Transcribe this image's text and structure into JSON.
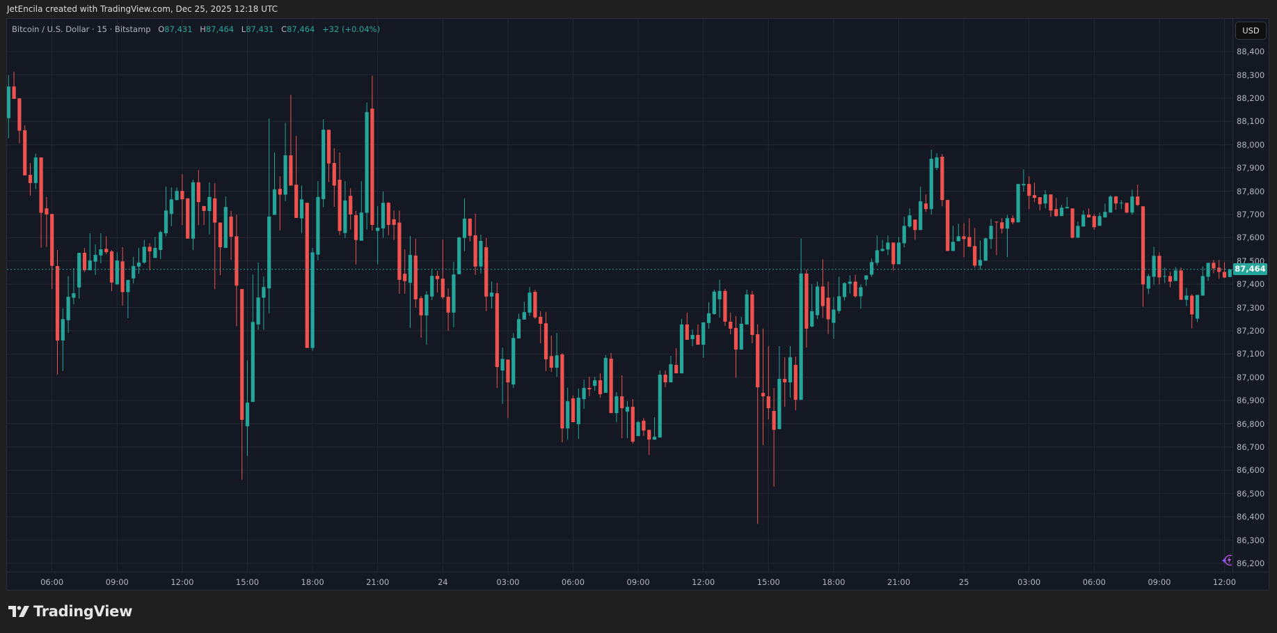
{
  "caption": "JetEncila created with TradingView.com, Dec 25, 2025 12:18 UTC",
  "legend": {
    "symbol": "Bitcoin / U.S. Dollar · 15 · Bitstamp",
    "o_label": "O",
    "o": "87,431",
    "h_label": "H",
    "h": "87,464",
    "l_label": "L",
    "l": "87,431",
    "c_label": "C",
    "c": "87,464",
    "change": "+32 (+0.04%)"
  },
  "currency_button": "USD",
  "last_price_label": "87,464",
  "logo_text": "TradingView",
  "colors": {
    "up": "#26a69a",
    "down": "#ef5350",
    "grid": "#232733",
    "last_line": "#26a69a"
  },
  "chart_data": {
    "type": "candlestick",
    "title": "Bitcoin / U.S. Dollar · 15 · Bitstamp",
    "interval_minutes": 15,
    "ylim": [
      86164,
      88541
    ],
    "grid": true,
    "last_price": 87464,
    "y_ticks": [
      "88,400",
      "88,300",
      "88,200",
      "88,100",
      "88,000",
      "87,900",
      "87,800",
      "87,700",
      "87,600",
      "87,500",
      "87,400",
      "87,300",
      "87,200",
      "87,100",
      "87,000",
      "86,900",
      "86,800",
      "86,700",
      "86,600",
      "86,500",
      "86,400",
      "86,300",
      "86,200"
    ],
    "y_tick_values": [
      88400,
      88300,
      88200,
      88100,
      88000,
      87900,
      87800,
      87700,
      87600,
      87500,
      87400,
      87300,
      87200,
      87100,
      87000,
      86900,
      86800,
      86700,
      86600,
      86500,
      86400,
      86300,
      86200
    ],
    "x_ticks": [
      {
        "label": "06:00",
        "index": 8
      },
      {
        "label": "09:00",
        "index": 20
      },
      {
        "label": "12:00",
        "index": 32
      },
      {
        "label": "15:00",
        "index": 44
      },
      {
        "label": "18:00",
        "index": 56
      },
      {
        "label": "21:00",
        "index": 68
      },
      {
        "label": "24",
        "index": 80
      },
      {
        "label": "03:00",
        "index": 92
      },
      {
        "label": "06:00",
        "index": 104
      },
      {
        "label": "09:00",
        "index": 116
      },
      {
        "label": "12:00",
        "index": 128
      },
      {
        "label": "15:00",
        "index": 140
      },
      {
        "label": "18:00",
        "index": 152
      },
      {
        "label": "21:00",
        "index": 164
      },
      {
        "label": "25",
        "index": 176
      },
      {
        "label": "03:00",
        "index": 188
      },
      {
        "label": "06:00",
        "index": 200
      },
      {
        "label": "09:00",
        "index": 212
      },
      {
        "label": "12:00",
        "index": 224
      }
    ],
    "ohlc": [
      [
        88114,
        88298,
        88027,
        88250
      ],
      [
        88250,
        88313,
        88197,
        88197
      ],
      [
        88199,
        88199,
        88006,
        88060
      ],
      [
        88062,
        88083,
        87868,
        87868
      ],
      [
        87870,
        87921,
        87781,
        87835
      ],
      [
        87835,
        87962,
        87809,
        87945
      ],
      [
        87945,
        87945,
        87557,
        87707
      ],
      [
        87726,
        87775,
        87560,
        87700
      ],
      [
        87702,
        87702,
        87379,
        87479
      ],
      [
        87478,
        87547,
        87012,
        87158
      ],
      [
        87158,
        87296,
        87027,
        87250
      ],
      [
        87245,
        87435,
        87191,
        87346
      ],
      [
        87342,
        87469,
        87314,
        87361
      ],
      [
        87386,
        87535,
        87338,
        87535
      ],
      [
        87535,
        87556,
        87453,
        87460
      ],
      [
        87460,
        87619,
        87460,
        87502
      ],
      [
        87497,
        87571,
        87440,
        87526
      ],
      [
        87524,
        87619,
        87490,
        87550
      ],
      [
        87552,
        87606,
        87529,
        87538
      ],
      [
        87541,
        87547,
        87370,
        87407
      ],
      [
        87399,
        87537,
        87399,
        87502
      ],
      [
        87498,
        87559,
        87308,
        87366
      ],
      [
        87366,
        87418,
        87254,
        87418
      ],
      [
        87425,
        87517,
        87403,
        87478
      ],
      [
        87476,
        87556,
        87445,
        87493
      ],
      [
        87493,
        87591,
        87488,
        87561
      ],
      [
        87561,
        87576,
        87460,
        87541
      ],
      [
        87513,
        87604,
        87513,
        87556
      ],
      [
        87547,
        87630,
        87508,
        87624
      ],
      [
        87619,
        87819,
        87605,
        87717
      ],
      [
        87702,
        87816,
        87649,
        87765
      ],
      [
        87762,
        87816,
        87760,
        87801
      ],
      [
        87801,
        87873,
        87654,
        87765
      ],
      [
        87769,
        87771,
        87596,
        87596
      ],
      [
        87596,
        87849,
        87547,
        87838
      ],
      [
        87838,
        87891,
        87654,
        87753
      ],
      [
        87736,
        87736,
        87654,
        87715
      ],
      [
        87715,
        87838,
        87614,
        87775
      ],
      [
        87769,
        87834,
        87379,
        87665
      ],
      [
        87665,
        87665,
        87439,
        87559
      ],
      [
        87556,
        87777,
        87556,
        87732
      ],
      [
        87691,
        87715,
        87505,
        87604
      ],
      [
        87606,
        87699,
        87220,
        87394
      ],
      [
        87379,
        87379,
        86560,
        86817
      ],
      [
        86789,
        87073,
        86662,
        86891
      ],
      [
        86894,
        87442,
        86894,
        87238
      ],
      [
        87227,
        87493,
        87204,
        87343
      ],
      [
        87342,
        87433,
        87204,
        87388
      ],
      [
        87382,
        88112,
        87275,
        87691
      ],
      [
        87698,
        87966,
        87698,
        87808
      ],
      [
        87810,
        87864,
        87631,
        87785
      ],
      [
        87785,
        88094,
        87757,
        87954
      ],
      [
        87954,
        88214,
        87824,
        87824
      ],
      [
        87828,
        88038,
        87685,
        87685
      ],
      [
        87683,
        87825,
        87620,
        87765
      ],
      [
        87750,
        87750,
        87126,
        87126
      ],
      [
        87126,
        87556,
        87114,
        87537
      ],
      [
        87527,
        87843,
        87503,
        87775
      ],
      [
        87766,
        88109,
        87731,
        88064
      ],
      [
        88064,
        88064,
        87839,
        87919
      ],
      [
        87921,
        87984,
        87733,
        87824
      ],
      [
        87849,
        87966,
        87611,
        87629
      ],
      [
        87620,
        87843,
        87599,
        87760
      ],
      [
        87780,
        87813,
        87635,
        87700
      ],
      [
        87697,
        87715,
        87485,
        87590
      ],
      [
        87587,
        87843,
        87587,
        87708
      ],
      [
        87707,
        88181,
        87635,
        88140
      ],
      [
        88155,
        88296,
        87631,
        87655
      ],
      [
        87629,
        87736,
        87485,
        87643
      ],
      [
        87640,
        87799,
        87599,
        87750
      ],
      [
        87750,
        87754,
        87611,
        87655
      ],
      [
        87679,
        87717,
        87590,
        87655
      ],
      [
        87665,
        87717,
        87359,
        87419
      ],
      [
        87445,
        87550,
        87359,
        87413
      ],
      [
        87406,
        87607,
        87212,
        87526
      ],
      [
        87523,
        87595,
        87299,
        87335
      ],
      [
        87340,
        87349,
        87170,
        87266
      ],
      [
        87266,
        87370,
        87140,
        87355
      ],
      [
        87347,
        87463,
        87332,
        87436
      ],
      [
        87436,
        87457,
        87365,
        87422
      ],
      [
        87424,
        87592,
        87335,
        87344
      ],
      [
        87346,
        87382,
        87200,
        87278
      ],
      [
        87278,
        87496,
        87215,
        87442
      ],
      [
        87443,
        87604,
        87443,
        87601
      ],
      [
        87599,
        87769,
        87542,
        87682
      ],
      [
        87682,
        87682,
        87584,
        87608
      ],
      [
        87610,
        87703,
        87440,
        87476
      ],
      [
        87476,
        87613,
        87446,
        87586
      ],
      [
        87559,
        87598,
        87284,
        87347
      ],
      [
        87347,
        87412,
        87296,
        87364
      ],
      [
        87361,
        87406,
        86954,
        87044
      ],
      [
        87029,
        87127,
        86885,
        87079
      ],
      [
        87076,
        87076,
        86825,
        86978
      ],
      [
        86969,
        87190,
        86954,
        87169
      ],
      [
        87167,
        87274,
        87167,
        87250
      ],
      [
        87248,
        87325,
        87248,
        87280
      ],
      [
        87278,
        87388,
        87263,
        87364
      ],
      [
        87367,
        87376,
        87251,
        87257
      ],
      [
        87260,
        87284,
        87146,
        87230
      ],
      [
        87232,
        87281,
        87026,
        87077
      ],
      [
        87091,
        87179,
        87023,
        87041
      ],
      [
        87041,
        87191,
        87002,
        87094
      ],
      [
        87098,
        87104,
        86720,
        86780
      ],
      [
        86780,
        86956,
        86732,
        86897
      ],
      [
        86909,
        86921,
        86807,
        86807
      ],
      [
        86798,
        86951,
        86735,
        86912
      ],
      [
        86906,
        86990,
        86864,
        86954
      ],
      [
        86954,
        87002,
        86918,
        86948
      ],
      [
        86963,
        87002,
        86942,
        86987
      ],
      [
        86987,
        87017,
        86912,
        86927
      ],
      [
        86933,
        87095,
        86933,
        87083
      ],
      [
        87080,
        87104,
        86846,
        86846
      ],
      [
        86846,
        86936,
        86807,
        86918
      ],
      [
        86918,
        87008,
        86738,
        86867
      ],
      [
        86852,
        86897,
        86738,
        86873
      ],
      [
        86873,
        86906,
        86714,
        86723
      ],
      [
        86747,
        86813,
        86747,
        86807
      ],
      [
        86813,
        86825,
        86747,
        86771
      ],
      [
        86774,
        86774,
        86666,
        86732
      ],
      [
        86732,
        86828,
        86732,
        86744
      ],
      [
        86741,
        87029,
        86741,
        87011
      ],
      [
        87011,
        87029,
        86957,
        86978
      ],
      [
        86978,
        87092,
        86978,
        87056
      ],
      [
        87053,
        87125,
        87017,
        87017
      ],
      [
        87017,
        87251,
        87017,
        87227
      ],
      [
        87227,
        87278,
        87161,
        87161
      ],
      [
        87164,
        87206,
        87134,
        87182
      ],
      [
        87182,
        87227,
        87140,
        87140
      ],
      [
        87140,
        87236,
        87083,
        87236
      ],
      [
        87233,
        87323,
        87209,
        87275
      ],
      [
        87272,
        87377,
        87269,
        87368
      ],
      [
        87335,
        87419,
        87257,
        87371
      ],
      [
        87371,
        87380,
        87221,
        87239
      ],
      [
        87239,
        87278,
        87185,
        87209
      ],
      [
        87212,
        87263,
        86999,
        87119
      ],
      [
        87119,
        87260,
        87119,
        87230
      ],
      [
        87227,
        87377,
        87227,
        87356
      ],
      [
        87356,
        87371,
        87146,
        87182
      ],
      [
        87185,
        87227,
        86370,
        86957
      ],
      [
        86933,
        87209,
        86708,
        86918
      ],
      [
        86918,
        87134,
        86819,
        86867
      ],
      [
        86855,
        86954,
        86530,
        86774
      ],
      [
        86777,
        87134,
        86777,
        86993
      ],
      [
        86993,
        87086,
        86873,
        86978
      ],
      [
        86978,
        87134,
        86912,
        87086
      ],
      [
        87053,
        87089,
        86858,
        86903
      ],
      [
        86903,
        87597,
        86903,
        87446
      ],
      [
        87446,
        87463,
        87128,
        87209
      ],
      [
        87218,
        87400,
        87215,
        87284
      ],
      [
        87267,
        87411,
        87250,
        87390
      ],
      [
        87390,
        87507,
        87255,
        87306
      ],
      [
        87342,
        87411,
        87186,
        87249
      ],
      [
        87234,
        87345,
        87165,
        87291
      ],
      [
        87285,
        87432,
        87273,
        87348
      ],
      [
        87345,
        87408,
        87330,
        87405
      ],
      [
        87402,
        87438,
        87360,
        87411
      ],
      [
        87411,
        87441,
        87342,
        87348
      ],
      [
        87348,
        87399,
        87294,
        87387
      ],
      [
        87420,
        87438,
        87393,
        87438
      ],
      [
        87441,
        87510,
        87432,
        87495
      ],
      [
        87492,
        87609,
        87480,
        87546
      ],
      [
        87543,
        87591,
        87540,
        87552
      ],
      [
        87549,
        87609,
        87525,
        87579
      ],
      [
        87579,
        87579,
        87459,
        87486
      ],
      [
        87486,
        87603,
        87486,
        87579
      ],
      [
        87576,
        87690,
        87558,
        87651
      ],
      [
        87648,
        87726,
        87642,
        87696
      ],
      [
        87678,
        87678,
        87591,
        87633
      ],
      [
        87633,
        87819,
        87633,
        87756
      ],
      [
        87747,
        87786,
        87711,
        87723
      ],
      [
        87723,
        87978,
        87699,
        87939
      ],
      [
        87900,
        87963,
        87891,
        87945
      ],
      [
        87948,
        87960,
        87735,
        87762
      ],
      [
        87762,
        87762,
        87543,
        87543
      ],
      [
        87543,
        87651,
        87543,
        87582
      ],
      [
        87585,
        87660,
        87585,
        87606
      ],
      [
        87606,
        87663,
        87516,
        87594
      ],
      [
        87603,
        87684,
        87561,
        87561
      ],
      [
        87564,
        87642,
        87471,
        87480
      ],
      [
        87480,
        87588,
        87462,
        87504
      ],
      [
        87501,
        87600,
        87501,
        87597
      ],
      [
        87594,
        87681,
        87552,
        87651
      ],
      [
        87669,
        87669,
        87525,
        87666
      ],
      [
        87666,
        87684,
        87618,
        87639
      ],
      [
        87639,
        87699,
        87516,
        87684
      ],
      [
        87684,
        87696,
        87657,
        87666
      ],
      [
        87666,
        87831,
        87666,
        87831
      ],
      [
        87825,
        87894,
        87798,
        87831
      ],
      [
        87831,
        87864,
        87723,
        87780
      ],
      [
        87783,
        87837,
        87753,
        87771
      ],
      [
        87774,
        87774,
        87717,
        87744
      ],
      [
        87747,
        87804,
        87726,
        87786
      ],
      [
        87786,
        87786,
        87690,
        87717
      ],
      [
        87723,
        87771,
        87690,
        87693
      ],
      [
        87693,
        87741,
        87693,
        87729
      ],
      [
        87726,
        87774,
        87726,
        87732
      ],
      [
        87726,
        87726,
        87597,
        87600
      ],
      [
        87600,
        87669,
        87600,
        87651
      ],
      [
        87648,
        87717,
        87648,
        87699
      ],
      [
        87699,
        87726,
        87687,
        87687
      ],
      [
        87693,
        87702,
        87633,
        87645
      ],
      [
        87651,
        87708,
        87651,
        87693
      ],
      [
        87687,
        87747,
        87687,
        87711
      ],
      [
        87708,
        87783,
        87708,
        87777
      ],
      [
        87777,
        87780,
        87720,
        87747
      ],
      [
        87747,
        87762,
        87723,
        87750
      ],
      [
        87750,
        87750,
        87705,
        87708
      ],
      [
        87708,
        87807,
        87699,
        87777
      ],
      [
        87777,
        87828,
        87735,
        87741
      ],
      [
        87735,
        87735,
        87303,
        87399
      ],
      [
        87381,
        87444,
        87357,
        87435
      ],
      [
        87432,
        87561,
        87399,
        87522
      ],
      [
        87522,
        87537,
        87399,
        87429
      ],
      [
        87432,
        87471,
        87405,
        87435
      ],
      [
        87435,
        87453,
        87387,
        87411
      ],
      [
        87414,
        87474,
        87414,
        87459
      ],
      [
        87459,
        87471,
        87333,
        87333
      ],
      [
        87333,
        87384,
        87306,
        87351
      ],
      [
        87351,
        87357,
        87210,
        87270
      ],
      [
        87252,
        87354,
        87237,
        87354
      ],
      [
        87351,
        87477,
        87351,
        87435
      ],
      [
        87432,
        87492,
        87414,
        87492
      ],
      [
        87492,
        87504,
        87447,
        87468
      ],
      [
        87471,
        87504,
        87423,
        87453
      ],
      [
        87453,
        87495,
        87426,
        87429
      ],
      [
        87431,
        87464,
        87431,
        87464
      ]
    ]
  }
}
